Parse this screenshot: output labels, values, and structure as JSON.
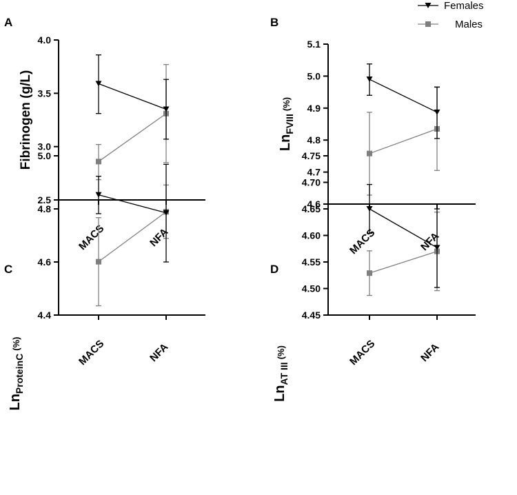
{
  "legend": {
    "females": "Females",
    "males": "Males",
    "colors": {
      "females": "#000000",
      "males": "#7f7f7f"
    }
  },
  "chart_data": [
    {
      "type": "line",
      "panel": "A",
      "ylabel": "Fibrinogen (g/L)",
      "ylabel_main": "Fibrinogen (g/L)",
      "ylabel_sub": "",
      "ylabel_suffix": "",
      "categories": [
        "MACS",
        "NFA"
      ],
      "ylim": [
        2.5,
        4.0
      ],
      "yticks": [
        2.5,
        3.0,
        3.5,
        4.0
      ],
      "ytick_labels": [
        "2.5",
        "3.0",
        "3.5",
        "4.0"
      ],
      "series": [
        {
          "name": "Females",
          "values": [
            3.59,
            3.35
          ],
          "err_low": [
            3.31,
            3.07
          ],
          "err_high": [
            3.86,
            3.63
          ]
        },
        {
          "name": "Males",
          "values": [
            2.86,
            3.31
          ],
          "err_low": [
            2.69,
            2.85
          ],
          "err_high": [
            3.02,
            3.77
          ]
        }
      ]
    },
    {
      "type": "line",
      "panel": "B",
      "ylabel": "LnFVIII (%)",
      "ylabel_main": "Ln",
      "ylabel_sub": "FVIII",
      "ylabel_suffix": "(%)",
      "categories": [
        "MACS",
        "NFA"
      ],
      "ylim": [
        4.6,
        5.1
      ],
      "yticks": [
        4.6,
        4.7,
        4.8,
        4.9,
        5.0,
        5.1
      ],
      "ytick_labels": [
        "4.6",
        "4.7",
        "4.8",
        "4.9",
        "5.0",
        "5.1"
      ],
      "series": [
        {
          "name": "Females",
          "values": [
            4.99,
            4.887
          ],
          "err_low": [
            4.94,
            4.805
          ],
          "err_high": [
            5.038,
            4.966
          ]
        },
        {
          "name": "Males",
          "values": [
            4.758,
            4.835
          ],
          "err_low": [
            4.628,
            4.705
          ],
          "err_high": [
            4.887,
            4.965
          ]
        }
      ]
    },
    {
      "type": "line",
      "panel": "C",
      "ylabel": "LnProteinC (%)",
      "ylabel_main": "Ln",
      "ylabel_sub": "ProteinC",
      "ylabel_suffix": "(%)",
      "categories": [
        "MACS",
        "NFA"
      ],
      "ylim": [
        4.4,
        5.0
      ],
      "yticks": [
        4.4,
        4.6,
        4.8,
        5.0
      ],
      "ytick_labels": [
        "4.4",
        "4.6",
        "4.8",
        "5.0"
      ],
      "series": [
        {
          "name": "Females",
          "values": [
            4.853,
            4.785
          ],
          "err_low": [
            4.782,
            4.6
          ],
          "err_high": [
            4.923,
            4.968
          ]
        },
        {
          "name": "Males",
          "values": [
            4.601,
            4.789
          ],
          "err_low": [
            4.435,
            4.689
          ],
          "err_high": [
            4.767,
            4.89
          ]
        }
      ]
    },
    {
      "type": "line",
      "panel": "D",
      "ylabel": "LnAT III (%)",
      "ylabel_main": "Ln",
      "ylabel_sub": "AT III",
      "ylabel_suffix": "(%)",
      "categories": [
        "MACS",
        "NFA"
      ],
      "ylim": [
        4.45,
        4.75
      ],
      "yticks": [
        4.45,
        4.5,
        4.55,
        4.6,
        4.65,
        4.7,
        4.75
      ],
      "ytick_labels": [
        "4.45",
        "4.50",
        "4.55",
        "4.60",
        "4.65",
        "4.70",
        "4.75"
      ],
      "series": [
        {
          "name": "Females",
          "values": [
            4.65,
            4.577
          ],
          "err_low": [
            4.604,
            4.502
          ],
          "err_high": [
            4.696,
            4.65
          ]
        },
        {
          "name": "Males",
          "values": [
            4.529,
            4.57
          ],
          "err_low": [
            4.487,
            4.496
          ],
          "err_high": [
            4.571,
            4.644
          ]
        }
      ]
    }
  ]
}
